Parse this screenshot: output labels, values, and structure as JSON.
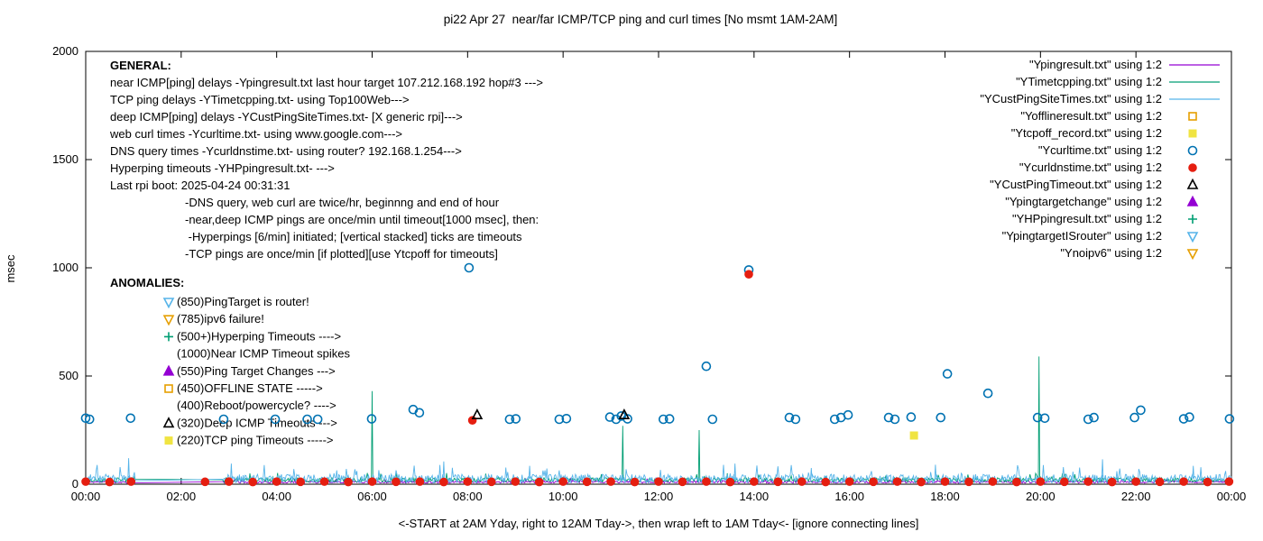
{
  "chart_data": {
    "type": "line+scatter",
    "title": "pi22 Apr 27  near/far ICMP/TCP ping and curl times [No msmt 1AM-2AM]",
    "xlabel": "<-START at 2AM Yday, right to 12AM Tday->, then wrap left to 1AM Tday<- [ignore connecting lines]",
    "ylabel": "msec",
    "xlim": [
      0,
      24
    ],
    "ylim": [
      0,
      2000
    ],
    "grid": false,
    "legend_position": "top-right-inside",
    "xticks": [
      {
        "pos": 0,
        "label": "00:00"
      },
      {
        "pos": 2,
        "label": "02:00"
      },
      {
        "pos": 4,
        "label": "04:00"
      },
      {
        "pos": 6,
        "label": "06:00"
      },
      {
        "pos": 8,
        "label": "08:00"
      },
      {
        "pos": 10,
        "label": "10:00"
      },
      {
        "pos": 12,
        "label": "12:00"
      },
      {
        "pos": 14,
        "label": "14:00"
      },
      {
        "pos": 16,
        "label": "16:00"
      },
      {
        "pos": 18,
        "label": "18:00"
      },
      {
        "pos": 20,
        "label": "20:00"
      },
      {
        "pos": 22,
        "label": "22:00"
      },
      {
        "pos": 24,
        "label": "00:00"
      }
    ],
    "yticks": [
      0,
      500,
      1000,
      1500,
      2000
    ],
    "legend": [
      {
        "label": "\"Ypingresult.txt\" using 1:2",
        "type": "line",
        "color": "#9400d3"
      },
      {
        "label": "\"YTimetcpping.txt\" using 1:2",
        "type": "line",
        "color": "#009e73"
      },
      {
        "label": "\"YCustPingSiteTimes.txt\" using 1:2",
        "type": "line",
        "color": "#56b4e9"
      },
      {
        "label": "\"Yofflineresult.txt\" using 1:2",
        "type": "square-open",
        "color": "#e69f00"
      },
      {
        "label": "\"Ytcpoff_record.txt\" using 1:2",
        "type": "square-filled",
        "color": "#f0e442"
      },
      {
        "label": "\"Ycurltime.txt\" using 1:2",
        "type": "circle-open",
        "color": "#0072b2"
      },
      {
        "label": "\"Ycurldnstime.txt\" using 1:2",
        "type": "circle-filled",
        "color": "#e51e10"
      },
      {
        "label": "\"YCustPingTimeout.txt\" using 1:2",
        "type": "triangle-up-open",
        "color": "#000000"
      },
      {
        "label": "\"Ypingtargetchange\" using 1:2",
        "type": "triangle-up-filled",
        "color": "#9400d3"
      },
      {
        "label": "\"YHPpingresult.txt\" using 1:2",
        "type": "plus",
        "color": "#009e73"
      },
      {
        "label": "\"YpingtargetISrouter\" using 1:2",
        "type": "triangle-down-open",
        "color": "#56b4e9"
      },
      {
        "label": "\"Ynoipv6\" using 1:2",
        "type": "triangle-down-open",
        "color": "#e69f00"
      }
    ],
    "annotations": {
      "general": {
        "heading": "GENERAL:",
        "lines": [
          "near ICMP[ping] delays -Ypingresult.txt last hour target 107.212.168.192 hop#3 --->",
          "TCP ping delays -YTimetcpping.txt- using Top100Web--->",
          "deep ICMP[ping] delays -YCustPingSiteTimes.txt- [X generic rpi]--->",
          "web curl times -Ycurltime.txt- using www.google.com--->",
          "DNS query times -Ycurldnstime.txt- using router? 192.168.1.254--->",
          "Hyperping timeouts -YHPpingresult.txt- --->",
          "Last rpi boot: 2025-04-24 00:31:31"
        ],
        "indented_lines": [
          "-DNS query, web curl are twice/hr, beginnng and end of hour",
          "-near,deep ICMP pings are once/min until timeout[1000 msec], then:",
          " -Hyperpings [6/min] initiated; [vertical stacked] ticks are timeouts",
          "-TCP pings are once/min [if plotted][use Ytcpoff for timeouts]"
        ]
      },
      "anomalies": {
        "heading": "ANOMALIES:",
        "items": [
          {
            "marker": "triangle-down-open",
            "color": "#56b4e9",
            "text": "(850)PingTarget is router!"
          },
          {
            "marker": "triangle-down-open",
            "color": "#e69f00",
            "text": "(785)ipv6 failure!"
          },
          {
            "marker": "plus",
            "color": "#009e73",
            "text": "(500+)Hyperping Timeouts ---->"
          },
          {
            "marker": "none",
            "color": "",
            "text": "(1000)Near ICMP Timeout spikes"
          },
          {
            "marker": "triangle-up-filled",
            "color": "#9400d3",
            "text": "(550)Ping Target Changes --->"
          },
          {
            "marker": "square-open",
            "color": "#e69f00",
            "text": "(450)OFFLINE STATE ----->"
          },
          {
            "marker": "none",
            "color": "",
            "text": "(400)Reboot/powercycle? ---->"
          },
          {
            "marker": "triangle-up-open",
            "color": "#000000",
            "text": "(320)Deep ICMP Timeouts --->"
          },
          {
            "marker": "square-filled",
            "color": "#f0e442",
            "text": "(220)TCP ping Timeouts ----->"
          }
        ]
      }
    },
    "line_series": [
      {
        "name": "Ypingresult",
        "color": "#9400d3",
        "base": 10,
        "noise": 5,
        "spikes": []
      },
      {
        "name": "YTimetcpping",
        "color": "#009e73",
        "base": 20,
        "noise": 10,
        "spikes": [
          [
            6.0,
            430
          ],
          [
            11.25,
            270
          ],
          [
            12.85,
            250
          ],
          [
            19.97,
            590
          ]
        ]
      },
      {
        "name": "YCustPingSiteTimes",
        "color": "#56b4e9",
        "base": 26,
        "noise": 20,
        "spikes": [
          [
            0.9,
            120
          ],
          [
            3.05,
            95
          ],
          [
            7.5,
            105
          ],
          [
            9.3,
            85
          ],
          [
            13.6,
            95
          ],
          [
            15.2,
            75
          ],
          [
            17.8,
            90
          ],
          [
            21.3,
            115
          ],
          [
            23.2,
            85
          ]
        ]
      }
    ],
    "scatter_series": [
      {
        "name": "Ycurltime",
        "marker": "circle-open",
        "color": "#0072b2",
        "points": [
          [
            0.0,
            305
          ],
          [
            0.08,
            300
          ],
          [
            0.94,
            305
          ],
          [
            2.89,
            300
          ],
          [
            3.97,
            300
          ],
          [
            4.64,
            300
          ],
          [
            4.86,
            300
          ],
          [
            5.99,
            302
          ],
          [
            6.86,
            345
          ],
          [
            6.99,
            330
          ],
          [
            8.03,
            1000
          ],
          [
            8.88,
            300
          ],
          [
            9.01,
            302
          ],
          [
            9.92,
            300
          ],
          [
            10.07,
            303
          ],
          [
            10.98,
            310
          ],
          [
            11.11,
            300
          ],
          [
            11.22,
            315
          ],
          [
            11.35,
            302
          ],
          [
            12.1,
            300
          ],
          [
            12.23,
            302
          ],
          [
            13.0,
            545
          ],
          [
            13.13,
            300
          ],
          [
            13.89,
            990
          ],
          [
            14.74,
            308
          ],
          [
            14.87,
            300
          ],
          [
            15.69,
            300
          ],
          [
            15.82,
            308
          ],
          [
            15.97,
            320
          ],
          [
            16.82,
            308
          ],
          [
            16.95,
            300
          ],
          [
            17.29,
            310
          ],
          [
            17.91,
            308
          ],
          [
            18.05,
            510
          ],
          [
            18.9,
            420
          ],
          [
            19.94,
            308
          ],
          [
            20.09,
            305
          ],
          [
            21.0,
            300
          ],
          [
            21.12,
            308
          ],
          [
            21.97,
            308
          ],
          [
            22.1,
            342
          ],
          [
            23.0,
            302
          ],
          [
            23.12,
            310
          ],
          [
            23.96,
            302
          ]
        ]
      },
      {
        "name": "Ycurldnstime",
        "marker": "circle-filled",
        "color": "#e51e10",
        "points": [
          [
            0.0,
            12
          ],
          [
            0.5,
            10
          ],
          [
            0.95,
            12
          ],
          [
            2.5,
            11
          ],
          [
            3.0,
            12
          ],
          [
            3.5,
            10
          ],
          [
            4.0,
            12
          ],
          [
            4.5,
            11
          ],
          [
            5.0,
            12
          ],
          [
            5.5,
            10
          ],
          [
            6.0,
            12
          ],
          [
            6.5,
            11
          ],
          [
            7.0,
            12
          ],
          [
            7.5,
            10
          ],
          [
            8.0,
            12
          ],
          [
            8.1,
            295
          ],
          [
            8.5,
            11
          ],
          [
            9.0,
            12
          ],
          [
            9.5,
            10
          ],
          [
            10.0,
            12
          ],
          [
            10.5,
            11
          ],
          [
            11.0,
            12
          ],
          [
            11.5,
            10
          ],
          [
            12.0,
            12
          ],
          [
            12.5,
            11
          ],
          [
            13.0,
            12
          ],
          [
            13.5,
            10
          ],
          [
            13.89,
            970
          ],
          [
            14.0,
            12
          ],
          [
            14.5,
            11
          ],
          [
            15.0,
            12
          ],
          [
            15.5,
            10
          ],
          [
            16.0,
            12
          ],
          [
            16.5,
            11
          ],
          [
            17.0,
            12
          ],
          [
            17.5,
            10
          ],
          [
            18.0,
            12
          ],
          [
            18.5,
            11
          ],
          [
            19.0,
            12
          ],
          [
            19.5,
            10
          ],
          [
            20.0,
            12
          ],
          [
            20.5,
            11
          ],
          [
            21.0,
            12
          ],
          [
            21.5,
            10
          ],
          [
            22.0,
            12
          ],
          [
            22.5,
            11
          ],
          [
            23.0,
            12
          ],
          [
            23.5,
            10
          ],
          [
            23.95,
            12
          ]
        ]
      },
      {
        "name": "YCustPingTimeout",
        "marker": "triangle-up-open",
        "color": "#000000",
        "points": [
          [
            8.2,
            320
          ],
          [
            11.28,
            320
          ]
        ]
      },
      {
        "name": "Ytcpoff_record",
        "marker": "square-filled",
        "color": "#f0e442",
        "points": [
          [
            17.35,
            225
          ]
        ]
      }
    ]
  }
}
